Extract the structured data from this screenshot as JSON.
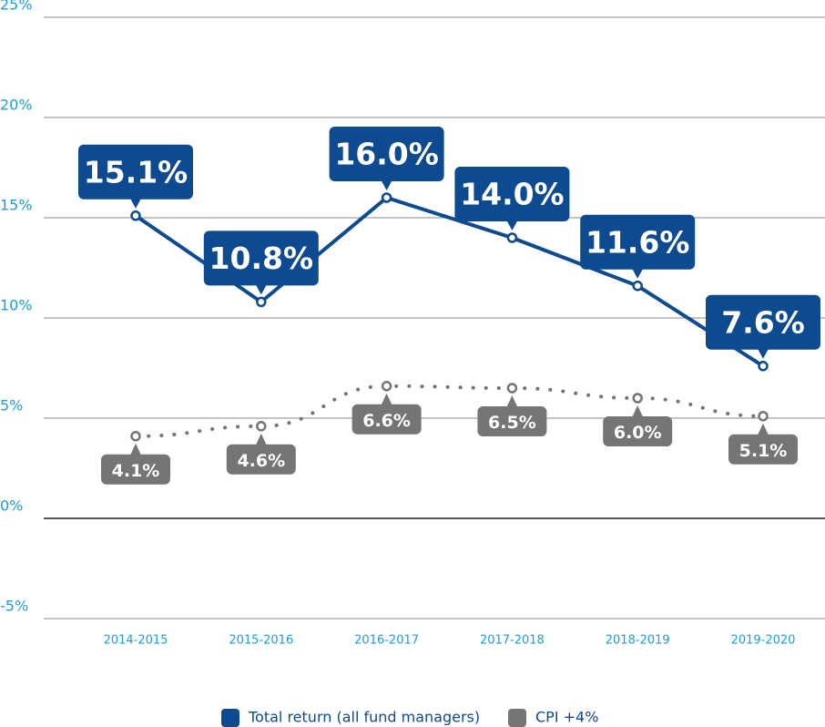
{
  "chart_data": {
    "type": "line",
    "categories": [
      "2014-2015",
      "2015-2016",
      "2016-2017",
      "2017-2018",
      "2018-2019",
      "2019-2020"
    ],
    "series": [
      {
        "name": "Total return (all fund managers)",
        "color": "#0d4a8f",
        "style": "solid",
        "label_position": "above",
        "values": [
          15.1,
          10.8,
          16.0,
          14.0,
          11.6,
          7.6
        ],
        "value_labels": [
          "15.1%",
          "10.8%",
          "16.0%",
          "14.0%",
          "11.6%",
          "7.6%"
        ]
      },
      {
        "name": "CPI +4%",
        "color": "#757575",
        "style": "dotted",
        "label_position": "below",
        "values": [
          4.1,
          4.6,
          6.6,
          6.5,
          6.0,
          5.1
        ],
        "value_labels": [
          "4.1%",
          "4.6%",
          "6.6%",
          "6.5%",
          "6.0%",
          "5.1%"
        ]
      }
    ],
    "ylim": [
      -5,
      25
    ],
    "yticks": [
      {
        "value": -5,
        "label": "-5%"
      },
      {
        "value": 0,
        "label": "0%"
      },
      {
        "value": 5,
        "label": "5%"
      },
      {
        "value": 10,
        "label": "10%"
      },
      {
        "value": 15,
        "label": "15%"
      },
      {
        "value": 20,
        "label": "20%"
      },
      {
        "value": 25,
        "label": "25%"
      }
    ],
    "grid": true,
    "legend": "bottom"
  }
}
